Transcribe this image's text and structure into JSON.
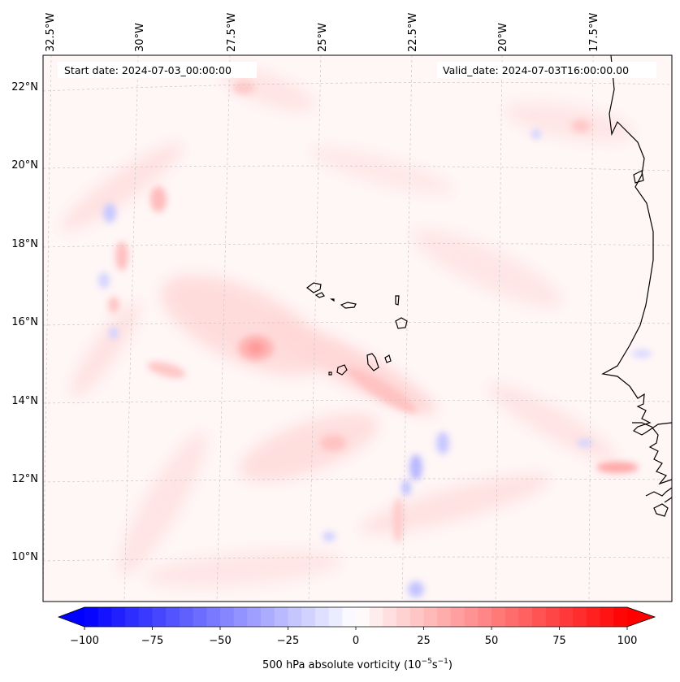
{
  "map": {
    "start_label": "Start date: 2024-07-03_00:00:00",
    "valid_label": "Valid_date: 2024-07-03T16:00:00.00",
    "lon_labels": [
      "32.5°W",
      "30°W",
      "27.5°W",
      "25°W",
      "22.5°W",
      "20°W",
      "17.5°W"
    ],
    "lat_labels": [
      "22°N",
      "20°N",
      "18°N",
      "16°N",
      "14°N",
      "12°N",
      "10°N"
    ]
  },
  "colorbar": {
    "ticks": [
      "−100",
      "−75",
      "−50",
      "−25",
      "0",
      "25",
      "50",
      "75",
      "100"
    ],
    "label_main": "500 hPa absolute vorticity (10",
    "label_exp1": "−5",
    "label_mid": "s",
    "label_exp2": "−1",
    "label_end": ")",
    "min": -100,
    "max": 100,
    "levels": 40,
    "neg_color": "#0000ff",
    "pos_color": "#ff0000"
  }
}
